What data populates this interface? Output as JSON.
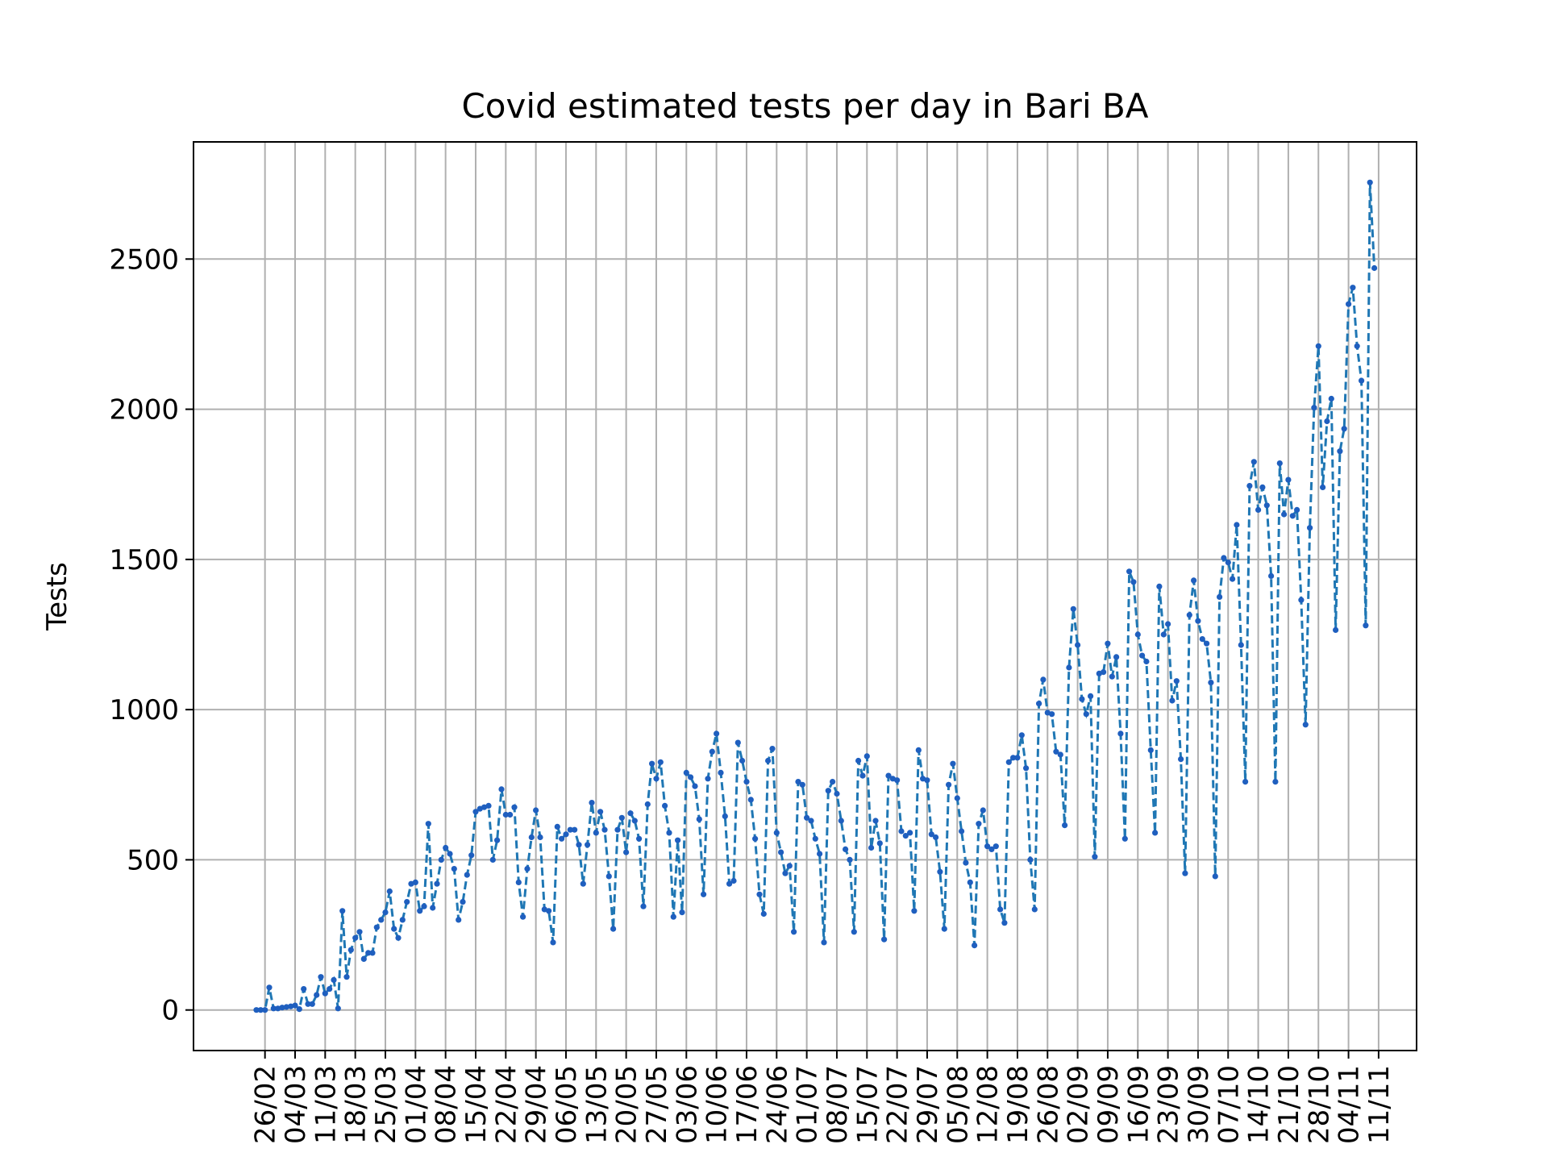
{
  "chart_data": {
    "type": "line",
    "title": "Covid estimated tests per day in Bari BA",
    "xlabel": "",
    "ylabel": "Tests",
    "ylim": [
      -135,
      2890
    ],
    "yticks": [
      0,
      500,
      1000,
      1500,
      2000,
      2500
    ],
    "start_date": "2020-02-24",
    "x_ticks": [
      "26/02",
      "04/03",
      "11/03",
      "18/03",
      "25/03",
      "01/04",
      "08/04",
      "15/04",
      "22/04",
      "29/04",
      "06/05",
      "13/05",
      "20/05",
      "27/05",
      "03/06",
      "10/06",
      "17/06",
      "24/06",
      "01/07",
      "08/07",
      "15/07",
      "22/07",
      "29/07",
      "05/08",
      "12/08",
      "19/08",
      "26/08",
      "02/09",
      "09/09",
      "16/09",
      "23/09",
      "30/09",
      "07/10",
      "14/10",
      "21/10",
      "28/10",
      "04/11",
      "11/11"
    ],
    "grid": true,
    "style": {
      "line_color": "#1f77b4",
      "marker_color": "#1f5fbf",
      "linestyle": "dashed",
      "marker": "dot"
    },
    "series": [
      {
        "name": "",
        "values": [
          0,
          0,
          0,
          75,
          5,
          5,
          8,
          10,
          12,
          15,
          3,
          70,
          20,
          20,
          50,
          110,
          55,
          70,
          100,
          5,
          330,
          110,
          200,
          240,
          260,
          170,
          190,
          190,
          275,
          300,
          325,
          395,
          270,
          240,
          300,
          360,
          420,
          425,
          330,
          345,
          620,
          340,
          420,
          500,
          540,
          520,
          470,
          300,
          360,
          450,
          515,
          660,
          670,
          675,
          680,
          500,
          565,
          735,
          650,
          650,
          675,
          425,
          310,
          470,
          575,
          665,
          575,
          335,
          330,
          225,
          610,
          570,
          585,
          600,
          600,
          550,
          420,
          550,
          690,
          590,
          660,
          600,
          445,
          270,
          600,
          640,
          525,
          655,
          630,
          570,
          345,
          685,
          820,
          770,
          825,
          680,
          590,
          310,
          565,
          325,
          790,
          775,
          745,
          635,
          385,
          770,
          860,
          920,
          790,
          645,
          420,
          430,
          890,
          830,
          760,
          700,
          570,
          385,
          320,
          830,
          870,
          590,
          525,
          455,
          480,
          260,
          760,
          750,
          640,
          630,
          570,
          520,
          225,
          730,
          760,
          720,
          630,
          535,
          500,
          260,
          830,
          780,
          845,
          540,
          630,
          555,
          235,
          780,
          770,
          765,
          595,
          580,
          590,
          330,
          865,
          770,
          765,
          585,
          575,
          460,
          270,
          750,
          820,
          705,
          595,
          490,
          425,
          215,
          620,
          665,
          545,
          535,
          545,
          335,
          290,
          825,
          840,
          840,
          915,
          805,
          500,
          335,
          1020,
          1100,
          990,
          985,
          860,
          850,
          615,
          1140,
          1335,
          1215,
          1035,
          985,
          1045,
          510,
          1120,
          1125,
          1220,
          1110,
          1175,
          920,
          570,
          1460,
          1425,
          1250,
          1180,
          1160,
          865,
          590,
          1410,
          1250,
          1285,
          1030,
          1095,
          835,
          455,
          1315,
          1430,
          1295,
          1235,
          1220,
          1090,
          445,
          1375,
          1505,
          1490,
          1435,
          1615,
          1215,
          760,
          1745,
          1825,
          1665,
          1740,
          1680,
          1445,
          760,
          1820,
          1650,
          1765,
          1645,
          1665,
          1365,
          950,
          1605,
          2005,
          2210,
          1740,
          1960,
          2035,
          1265,
          1860,
          1935,
          2350,
          2405,
          2210,
          2095,
          1280,
          2755,
          2470
        ]
      }
    ]
  }
}
